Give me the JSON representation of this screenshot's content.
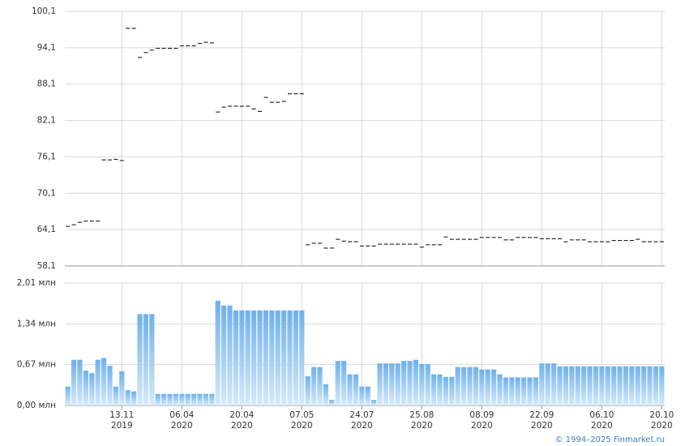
{
  "chart_data": [
    {
      "type": "dash",
      "color": "#000000",
      "values": [
        64.65,
        64.9,
        65.3,
        65.5,
        65.5,
        65.5,
        75.6,
        75.6,
        75.7,
        75.5,
        97.3,
        97.3,
        92.5,
        93.3,
        93.7,
        94.0,
        94.0,
        94.0,
        94.0,
        94.4,
        94.4,
        94.4,
        94.8,
        95.0,
        94.9,
        83.5,
        84.3,
        84.45,
        84.45,
        84.45,
        84.45,
        84.0,
        83.6,
        85.9,
        85.1,
        85.1,
        85.25,
        86.5,
        86.5,
        86.5,
        61.6,
        61.85,
        61.85,
        61.05,
        61.05,
        62.5,
        62.2,
        62.1,
        62.1,
        61.4,
        61.4,
        61.4,
        61.7,
        61.7,
        61.7,
        61.7,
        61.7,
        61.7,
        61.7,
        61.2,
        61.6,
        61.6,
        61.6,
        62.9,
        62.5,
        62.5,
        62.5,
        62.5,
        62.5,
        62.8,
        62.8,
        62.8,
        62.8,
        62.4,
        62.4,
        62.8,
        62.8,
        62.8,
        62.8,
        62.6,
        62.6,
        62.6,
        62.6,
        62.1,
        62.4,
        62.4,
        62.4,
        62.1,
        62.1,
        62.1,
        62.1,
        62.3,
        62.3,
        62.3,
        62.3,
        62.5,
        62.1,
        62.1,
        62.1,
        62.1
      ],
      "ylim": [
        58.1,
        100.1
      ],
      "yticks": [
        {
          "value": 58.1,
          "label": "58,1"
        },
        {
          "value": 64.1,
          "label": "64,1"
        },
        {
          "value": 70.1,
          "label": "70,1"
        },
        {
          "value": 76.1,
          "label": "76,1"
        },
        {
          "value": 82.1,
          "label": "82,1"
        },
        {
          "value": 88.1,
          "label": "88,1"
        },
        {
          "value": 94.1,
          "label": "94,1"
        },
        {
          "value": 100.1,
          "label": "100,1"
        }
      ],
      "grid": true
    },
    {
      "type": "bar",
      "color": "#7ab8ec",
      "categories": [
        null,
        null,
        null,
        null,
        null,
        null,
        null,
        null,
        null,
        "13.11",
        null,
        null,
        null,
        null,
        null,
        null,
        null,
        null,
        null,
        "06.04",
        null,
        null,
        null,
        null,
        null,
        null,
        null,
        null,
        null,
        "20.04",
        null,
        null,
        null,
        null,
        null,
        null,
        null,
        null,
        null,
        "07.05",
        null,
        null,
        null,
        null,
        null,
        null,
        null,
        null,
        null,
        "24.07",
        null,
        null,
        null,
        null,
        null,
        null,
        null,
        null,
        null,
        "25.08",
        null,
        null,
        null,
        null,
        null,
        null,
        null,
        null,
        null,
        "08.09",
        null,
        null,
        null,
        null,
        null,
        null,
        null,
        null,
        null,
        "22.09",
        null,
        null,
        null,
        null,
        null,
        null,
        null,
        null,
        null,
        "06.10",
        null,
        null,
        null,
        null,
        null,
        null,
        null,
        null,
        null,
        "20.10"
      ],
      "category_years": [
        null,
        null,
        null,
        null,
        null,
        null,
        null,
        null,
        null,
        "2019",
        null,
        null,
        null,
        null,
        null,
        null,
        null,
        null,
        null,
        "2020",
        null,
        null,
        null,
        null,
        null,
        null,
        null,
        null,
        null,
        "2020",
        null,
        null,
        null,
        null,
        null,
        null,
        null,
        null,
        null,
        "2020",
        null,
        null,
        null,
        null,
        null,
        null,
        null,
        null,
        null,
        "2020",
        null,
        null,
        null,
        null,
        null,
        null,
        null,
        null,
        null,
        "2020",
        null,
        null,
        null,
        null,
        null,
        null,
        null,
        null,
        null,
        "2020",
        null,
        null,
        null,
        null,
        null,
        null,
        null,
        null,
        null,
        "2020",
        null,
        null,
        null,
        null,
        null,
        null,
        null,
        null,
        null,
        "2020",
        null,
        null,
        null,
        null,
        null,
        null,
        null,
        null,
        null,
        "2020"
      ],
      "values": [
        0.31,
        0.75,
        0.75,
        0.57,
        0.53,
        0.75,
        0.78,
        0.65,
        0.31,
        0.56,
        0.25,
        0.23,
        1.5,
        1.5,
        1.5,
        0.19,
        0.19,
        0.19,
        0.19,
        0.19,
        0.19,
        0.19,
        0.19,
        0.19,
        0.19,
        1.72,
        1.64,
        1.64,
        1.56,
        1.56,
        1.56,
        1.56,
        1.56,
        1.56,
        1.56,
        1.56,
        1.56,
        1.56,
        1.56,
        1.56,
        0.48,
        0.63,
        0.63,
        0.35,
        0.09,
        0.73,
        0.73,
        0.51,
        0.51,
        0.31,
        0.31,
        0.09,
        0.69,
        0.69,
        0.69,
        0.69,
        0.73,
        0.73,
        0.75,
        0.68,
        0.68,
        0.51,
        0.51,
        0.47,
        0.47,
        0.63,
        0.63,
        0.63,
        0.63,
        0.59,
        0.59,
        0.59,
        0.51,
        0.46,
        0.46,
        0.46,
        0.46,
        0.46,
        0.46,
        0.69,
        0.69,
        0.69,
        0.64,
        0.64,
        0.64,
        0.64,
        0.64,
        0.64,
        0.64,
        0.64,
        0.64,
        0.64,
        0.64,
        0.64,
        0.64,
        0.64,
        0.64,
        0.64,
        0.64,
        0.64
      ],
      "ylim": [
        0,
        2.01
      ],
      "yticks": [
        {
          "value": 0,
          "label": "0,00 млн"
        },
        {
          "value": 0.67,
          "label": "0,67 млн"
        },
        {
          "value": 1.34,
          "label": "1,34 млн"
        },
        {
          "value": 2.01,
          "label": "2,01 млн"
        }
      ],
      "grid": true,
      "copyright": "© 1994–2025 Finmarket.ru"
    }
  ]
}
